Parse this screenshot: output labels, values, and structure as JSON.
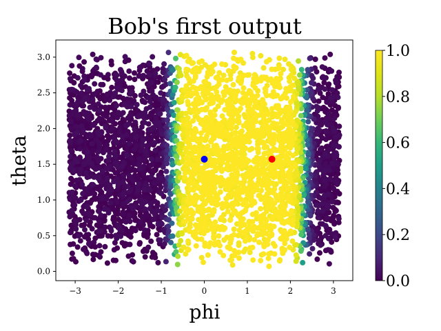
{
  "chart_data": {
    "type": "scatter",
    "title": "Bob's first output",
    "xlabel": "phi",
    "ylabel": "theta",
    "xlim": [
      -3.45,
      3.45
    ],
    "ylim": [
      -0.13,
      3.24
    ],
    "xticks": [
      -3,
      -2,
      -1,
      0,
      1,
      2,
      3
    ],
    "yticks": [
      0.0,
      0.5,
      1.0,
      1.5,
      2.0,
      2.5,
      3.0
    ],
    "ytick_labels": [
      "0.0",
      "0.5",
      "1.0",
      "1.5",
      "2.0",
      "2.5",
      "3.0"
    ],
    "grid": false,
    "colormap": "viridis",
    "colorbar": {
      "range": [
        0.0,
        1.0
      ],
      "ticks": [
        0.0,
        0.2,
        0.4,
        0.6,
        0.8,
        1.0
      ],
      "tick_labels": [
        "0.0",
        "0.2",
        "0.4",
        "0.6",
        "0.8",
        "1.0"
      ]
    },
    "scatter_summary": {
      "x_range": [
        -3.14,
        3.14
      ],
      "y_range": [
        0.05,
        3.1
      ],
      "value_near_1_region": [
        -0.8,
        2.3
      ],
      "value_near_0_regions": [
        [
          -3.14,
          -0.9
        ],
        [
          2.45,
          3.14
        ]
      ],
      "transition_bands": [
        [
          -0.9,
          -0.6
        ],
        [
          2.1,
          2.6
        ]
      ]
    },
    "highlight_points": [
      {
        "name": "",
        "x": 0.0,
        "y": 1.5708,
        "color": "#0000ff"
      },
      {
        "name": "",
        "x": 1.5708,
        "y": 1.5708,
        "color": "#ff0000"
      }
    ],
    "colors": {
      "low": "#440154",
      "mid": "#21908d",
      "high": "#fde725"
    }
  }
}
